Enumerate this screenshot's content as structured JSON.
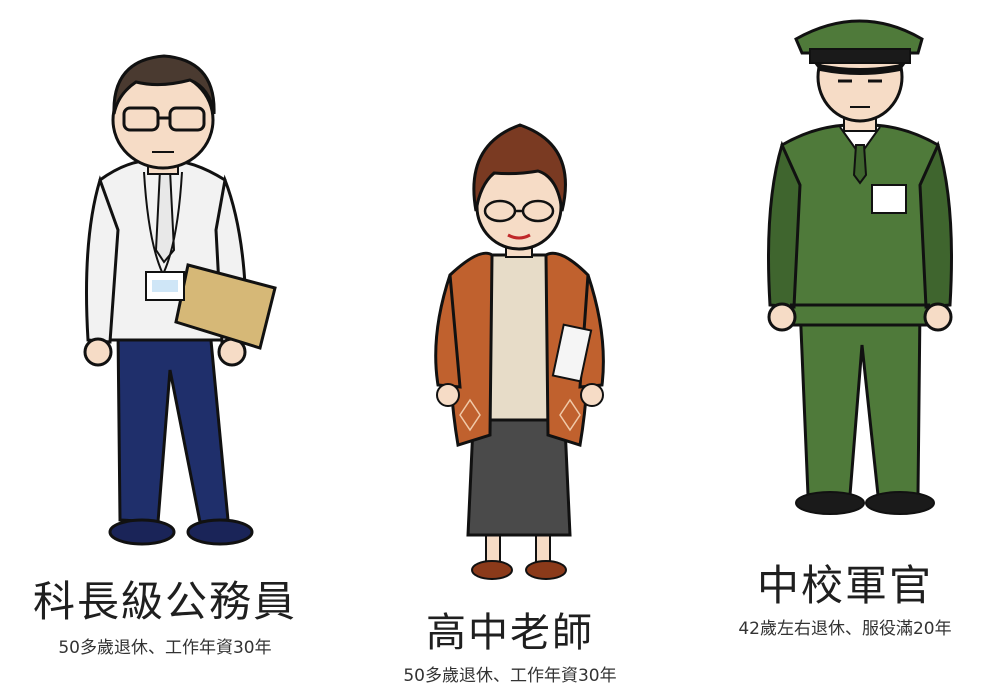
{
  "characters": [
    {
      "title": "科長級公務員",
      "subtitle": "50多歲退休、工作年資30年",
      "illustration": "office-worker-illustration",
      "colors": {
        "shirt": "#f2f2f2",
        "pants": "#1f2f6b",
        "folder": "#d6b877",
        "hair": "#4a3a30"
      }
    },
    {
      "title": "高中老師",
      "subtitle": "50多歲退休、工作年資30年",
      "illustration": "teacher-illustration",
      "colors": {
        "cardigan": "#c0612e",
        "sweater": "#e7dcc8",
        "skirt": "#4a4a4a",
        "hair": "#7a3a22"
      }
    },
    {
      "title": "中校軍官",
      "subtitle": "42歲左右退休、服役滿20年",
      "illustration": "military-officer-illustration",
      "colors": {
        "uniform": "#4f7a3a",
        "uniform_shade": "#3f652e",
        "shoes": "#1a1a1a"
      }
    }
  ]
}
